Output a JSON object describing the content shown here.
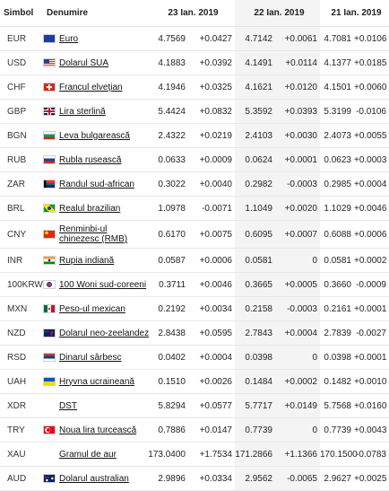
{
  "header": {
    "symbol": "Simbol",
    "name": "Denumire",
    "date1": "23 Ian. 2019",
    "date2": "22 Ian. 2019",
    "date3": "21 Ian. 2019"
  },
  "colors": {
    "positive": "#2e8b2e",
    "negative": "#d22a1e",
    "shade": "#f4f4f4"
  },
  "rows": [
    {
      "symbol": "EUR",
      "name": "Euro",
      "flag": "eu-flag",
      "v1": "4.7569",
      "d1": "+0.0427",
      "v2": "4.7142",
      "d2": "+0.0061",
      "v3": "4.7081",
      "d3": "+0.0106"
    },
    {
      "symbol": "USD",
      "name": "Dolarul SUA",
      "flag": "us-flag",
      "v1": "4.1883",
      "d1": "+0.0392",
      "v2": "4.1491",
      "d2": "+0.0114",
      "v3": "4.1377",
      "d3": "+0.0185"
    },
    {
      "symbol": "CHF",
      "name": "Francul elvețian",
      "flag": "ch-flag",
      "v1": "4.1946",
      "d1": "+0.0325",
      "v2": "4.1621",
      "d2": "+0.0120",
      "v3": "4.1501",
      "d3": "+0.0060"
    },
    {
      "symbol": "GBP",
      "name": "Lira sterlină",
      "flag": "gb-flag",
      "v1": "5.4424",
      "d1": "+0.0832",
      "v2": "5.3592",
      "d2": "+0.0393",
      "v3": "5.3199",
      "d3": "-0.0106"
    },
    {
      "symbol": "BGN",
      "name": "Leva bulgarească",
      "flag": "bg-flag",
      "v1": "2.4322",
      "d1": "+0.0219",
      "v2": "2.4103",
      "d2": "+0.0030",
      "v3": "2.4073",
      "d3": "+0.0055"
    },
    {
      "symbol": "RUB",
      "name": "Rubla rusească",
      "flag": "ru-flag",
      "v1": "0.0633",
      "d1": "+0.0009",
      "v2": "0.0624",
      "d2": "+0.0001",
      "v3": "0.0623",
      "d3": "+0.0003"
    },
    {
      "symbol": "ZAR",
      "name": "Randul sud-african",
      "flag": "za-flag",
      "v1": "0.3022",
      "d1": "+0.0040",
      "v2": "0.2982",
      "d2": "-0.0003",
      "v3": "0.2985",
      "d3": "+0.0004"
    },
    {
      "symbol": "BRL",
      "name": "Realul brazilian",
      "flag": "br-flag",
      "v1": "1.0978",
      "d1": "-0.0071",
      "v2": "1.1049",
      "d2": "+0.0020",
      "v3": "1.1029",
      "d3": "+0.0046"
    },
    {
      "symbol": "CNY",
      "name": "Renminbi-ul chinezesc (RMB)",
      "flag": "cn-flag",
      "v1": "0.6170",
      "d1": "+0.0075",
      "v2": "0.6095",
      "d2": "+0.0007",
      "v3": "0.6088",
      "d3": "+0.0006",
      "tall": true
    },
    {
      "symbol": "INR",
      "name": "Rupia indiană",
      "flag": "in-flag",
      "v1": "0.0587",
      "d1": "+0.0006",
      "v2": "0.0581",
      "d2": "0",
      "v3": "0.0581",
      "d3": "+0.0002"
    },
    {
      "symbol": "100KRW",
      "name": "100 Woni sud-coreeni",
      "flag": "kr-flag",
      "v1": "0.3711",
      "d1": "+0.0046",
      "v2": "0.3665",
      "d2": "+0.0005",
      "v3": "0.3660",
      "d3": "-0.0009"
    },
    {
      "symbol": "MXN",
      "name": "Peso-ul mexican",
      "flag": "mx-flag",
      "v1": "0.2192",
      "d1": "+0.0034",
      "v2": "0.2158",
      "d2": "-0.0003",
      "v3": "0.2161",
      "d3": "+0.0001"
    },
    {
      "symbol": "NZD",
      "name": "Dolarul neo-zeelandez",
      "flag": "nz-flag",
      "v1": "2.8438",
      "d1": "+0.0595",
      "v2": "2.7843",
      "d2": "+0.0004",
      "v3": "2.7839",
      "d3": "-0.0027"
    },
    {
      "symbol": "RSD",
      "name": "Dinarul sârbesc",
      "flag": "rs-flag",
      "v1": "0.0402",
      "d1": "+0.0004",
      "v2": "0.0398",
      "d2": "0",
      "v3": "0.0398",
      "d3": "+0.0001"
    },
    {
      "symbol": "UAH",
      "name": "Hryvna ucraineană",
      "flag": "ua-flag",
      "v1": "0.1510",
      "d1": "+0.0026",
      "v2": "0.1484",
      "d2": "+0.0002",
      "v3": "0.1482",
      "d3": "+0.0010"
    },
    {
      "symbol": "XDR",
      "name": "DST",
      "flag": "none",
      "v1": "5.8294",
      "d1": "+0.0577",
      "v2": "5.7717",
      "d2": "+0.0149",
      "v3": "5.7568",
      "d3": "+0.0160"
    },
    {
      "symbol": "TRY",
      "name": "Noua lira turcească",
      "flag": "tr-flag",
      "v1": "0.7886",
      "d1": "+0.0147",
      "v2": "0.7739",
      "d2": "0",
      "v3": "0.7739",
      "d3": "+0.0043"
    },
    {
      "symbol": "XAU",
      "name": "Gramul de aur",
      "flag": "none",
      "v1": "173.0400",
      "d1": "+1.7534",
      "v2": "171.2866",
      "d2": "+1.1366",
      "v3": "170.1500",
      "d3": "-0.0783"
    },
    {
      "symbol": "AUD",
      "name": "Dolarul australian",
      "flag": "au-flag",
      "v1": "2.9896",
      "d1": "+0.0334",
      "v2": "2.9562",
      "d2": "-0.0065",
      "v3": "2.9627",
      "d3": "+0.0025"
    }
  ]
}
